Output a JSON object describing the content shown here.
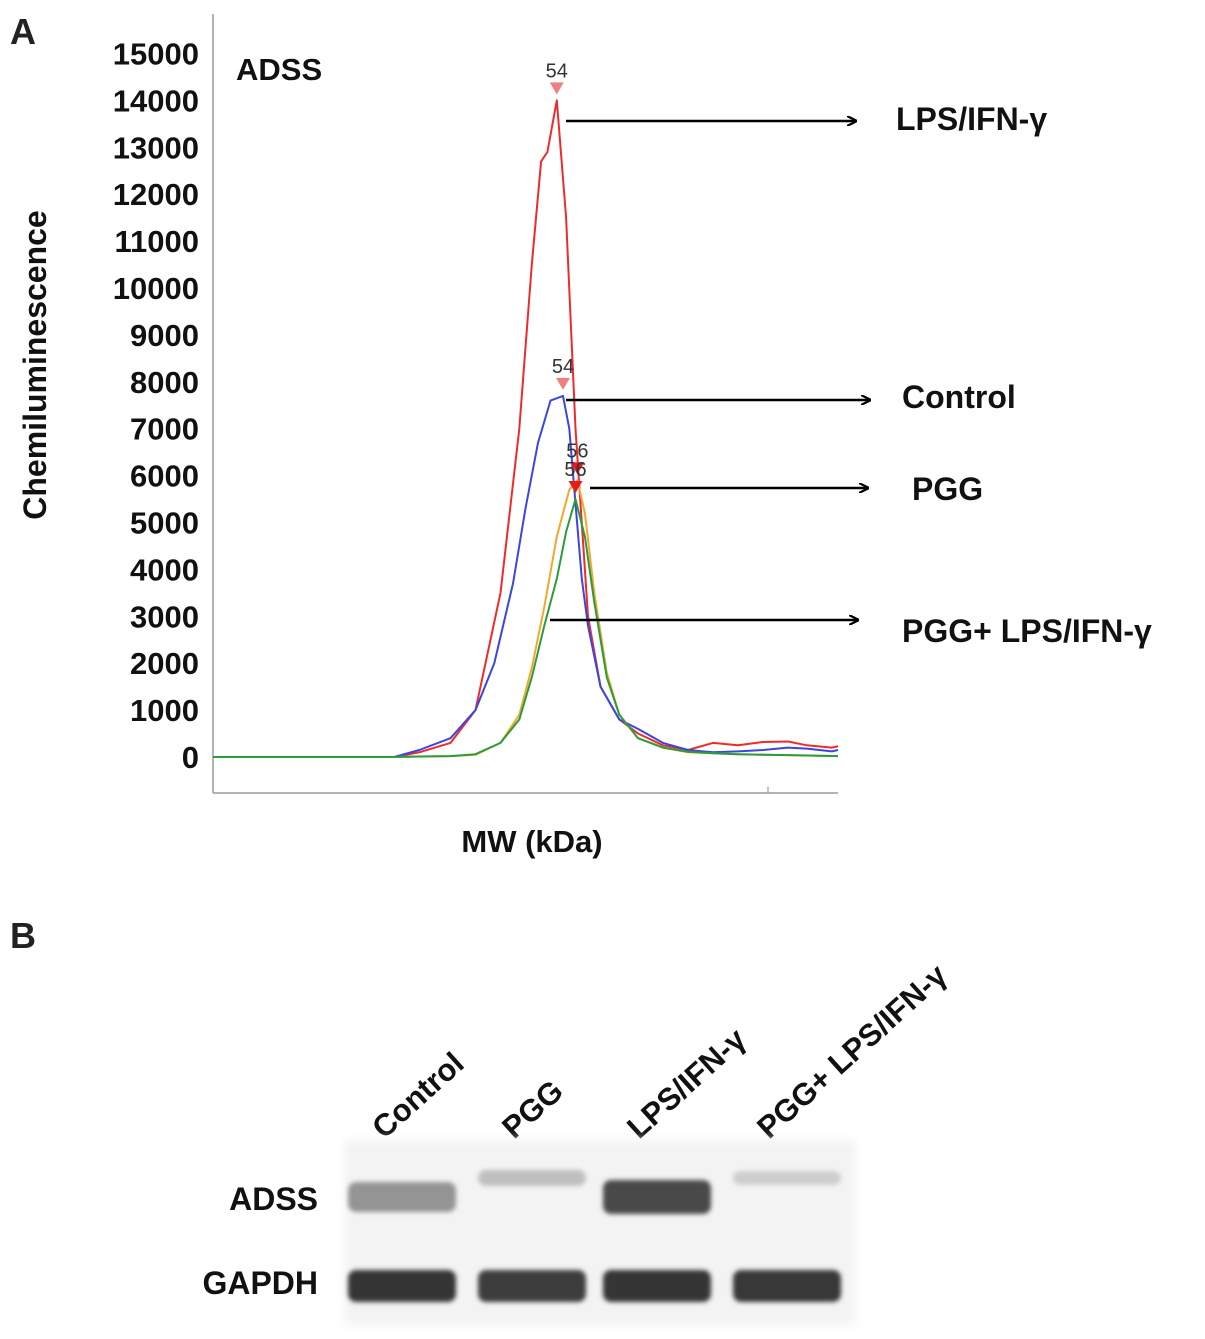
{
  "panel_a": {
    "letter": "A",
    "inset_label": "ADSS",
    "ylabel": "Chemiluminescence",
    "xlabel": "MW (kDa)",
    "yticks": [
      "0",
      "1000",
      "2000",
      "3000",
      "4000",
      "5000",
      "6000",
      "7000",
      "8000",
      "9000",
      "10000",
      "11000",
      "12000",
      "13000",
      "14000",
      "15000"
    ],
    "peak_markers": [
      {
        "text": "54",
        "series": "LPS/IFN-γ",
        "color": "#f08080"
      },
      {
        "text": "54",
        "series": "Control",
        "color": "#f08080"
      },
      {
        "text": "56",
        "series": "PGG",
        "color": "#e81b1b"
      },
      {
        "text": "56",
        "series": "PGG+ LPS/IFN-γ",
        "color": "#e81b1b"
      }
    ],
    "annotations": [
      "LPS/IFN-γ",
      "Control",
      "PGG",
      "PGG+ LPS/IFN-γ"
    ]
  },
  "panel_b": {
    "letter": "B",
    "lanes": [
      "Control",
      "PGG",
      "LPS/IFN-γ",
      "PGG+ LPS/IFN-γ"
    ],
    "rows": [
      "ADSS",
      "GAPDH"
    ],
    "adss_intensity": [
      0.45,
      0.25,
      0.8,
      0.18
    ],
    "gapdh_intensity": [
      0.9,
      0.85,
      0.9,
      0.88
    ]
  },
  "chart_data": {
    "type": "line",
    "title": "",
    "inset_label": "ADSS",
    "xlabel": "MW (kDa)",
    "ylabel": "Chemiluminescence",
    "ylim": [
      -700,
      15300
    ],
    "xlim": [
      0,
      100
    ],
    "grid": false,
    "series": [
      {
        "name": "LPS/IFN-γ",
        "color": "#ee2b2b",
        "peak_label": "54",
        "x": [
          0,
          29,
          33,
          38,
          42,
          46,
          49,
          51,
          52.5,
          53.5,
          55,
          56.5,
          58,
          60,
          62,
          65,
          68,
          72,
          76,
          80,
          84,
          88,
          92,
          95,
          99,
          100
        ],
        "y": [
          0,
          0,
          100,
          300,
          1000,
          3500,
          7000,
          10500,
          12700,
          12900,
          14000,
          11500,
          7000,
          3000,
          1500,
          800,
          500,
          250,
          150,
          300,
          250,
          320,
          330,
          250,
          200,
          230
        ]
      },
      {
        "name": "Control",
        "color": "#3b46e0",
        "peak_label": "54",
        "x": [
          0,
          29,
          33,
          38,
          42,
          45,
          48,
          50,
          52,
          54,
          56,
          57,
          58,
          59,
          60,
          62,
          65,
          68,
          72,
          76,
          80,
          84,
          88,
          92,
          95,
          99,
          100
        ],
        "y": [
          0,
          0,
          150,
          400,
          1000,
          2000,
          3700,
          5300,
          6700,
          7600,
          7700,
          7000,
          5400,
          3800,
          2800,
          1500,
          800,
          600,
          300,
          150,
          100,
          120,
          150,
          200,
          180,
          120,
          150
        ]
      },
      {
        "name": "PGG",
        "color": "#f4a72e",
        "peak_label": "56",
        "x": [
          0,
          29,
          33,
          38,
          42,
          46,
          49,
          51,
          53,
          55,
          57,
          58.3,
          59.5,
          61,
          63,
          65,
          68,
          72,
          76,
          80,
          84,
          88,
          92,
          96,
          100
        ],
        "y": [
          0,
          0,
          10,
          20,
          50,
          300,
          900,
          1900,
          3200,
          4700,
          5700,
          5900,
          5200,
          3500,
          1800,
          900,
          400,
          200,
          100,
          80,
          60,
          50,
          40,
          30,
          20
        ]
      },
      {
        "name": "PGG+ LPS/IFN-γ",
        "color": "#2a9d3a",
        "peak_label": "56",
        "x": [
          0,
          29,
          33,
          38,
          42,
          46,
          49,
          51,
          53,
          55,
          56.5,
          58,
          59.5,
          61,
          63,
          65,
          68,
          72,
          76,
          80,
          84,
          88,
          92,
          96,
          100
        ],
        "y": [
          0,
          0,
          10,
          20,
          60,
          300,
          800,
          1700,
          2800,
          3800,
          4800,
          5500,
          4700,
          3300,
          1700,
          900,
          400,
          200,
          110,
          80,
          60,
          50,
          40,
          30,
          20
        ]
      }
    ]
  }
}
